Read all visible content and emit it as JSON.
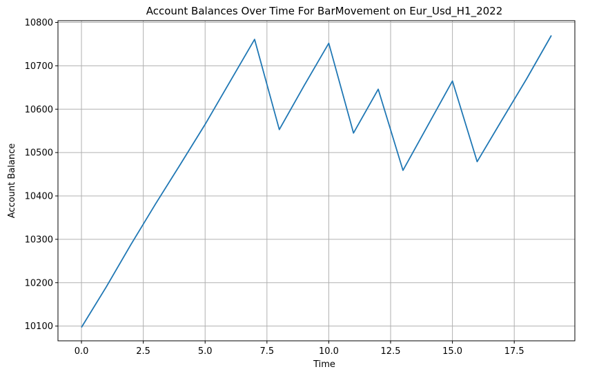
{
  "chart_data": {
    "type": "line",
    "title": "Account Balances Over Time For BarMovement on Eur_Usd_H1_2022",
    "xlabel": "Time",
    "ylabel": "Account Balance",
    "grid": true,
    "xlim": [
      -0.95,
      19.95
    ],
    "ylim": [
      10066,
      10804
    ],
    "xticks": [
      0.0,
      2.5,
      5.0,
      7.5,
      10.0,
      12.5,
      15.0,
      17.5
    ],
    "xtick_labels": [
      "0.0",
      "2.5",
      "5.0",
      "7.5",
      "10.0",
      "12.5",
      "15.0",
      "17.5"
    ],
    "yticks": [
      10100,
      10200,
      10300,
      10400,
      10500,
      10600,
      10700,
      10800
    ],
    "ytick_labels": [
      "10100",
      "10200",
      "10300",
      "10400",
      "10500",
      "10600",
      "10700",
      "10800"
    ],
    "series": [
      {
        "color": "#1f77b4",
        "x": [
          0,
          1,
          2,
          3,
          4,
          5,
          6,
          7,
          8,
          9,
          10,
          11,
          12,
          13,
          14,
          15,
          16,
          17,
          18,
          19
        ],
        "y": [
          10097,
          10190,
          10288,
          10382,
          10473,
          10565,
          10663,
          10761,
          10553,
          10654,
          10752,
          10545,
          10646,
          10459,
          10562,
          10665,
          10479,
          10575,
          10670,
          10770
        ]
      }
    ]
  }
}
